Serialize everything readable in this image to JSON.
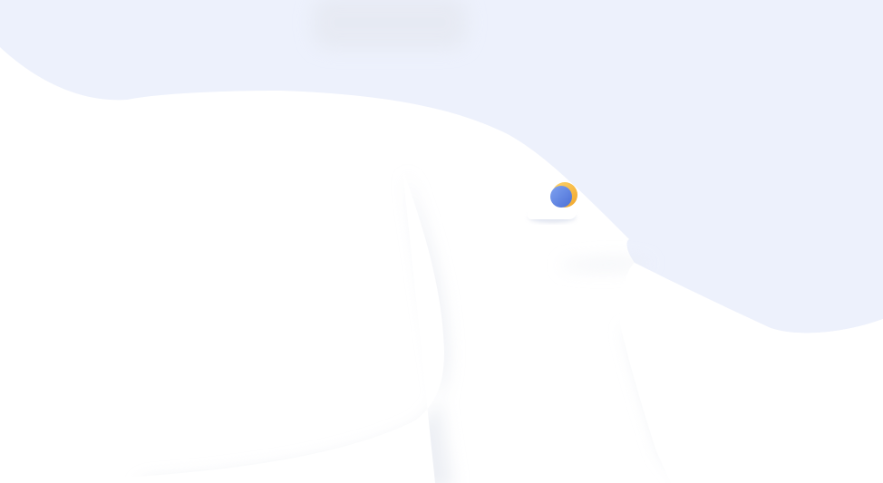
{
  "theme": {
    "background": "#ffffff",
    "accent_surface": "#edf1fc",
    "moon_blue": "#5b82e0",
    "sun_orange": "#f5b83d"
  },
  "illustration": {
    "icon": "weather-partly-cloudy-night-icon"
  }
}
